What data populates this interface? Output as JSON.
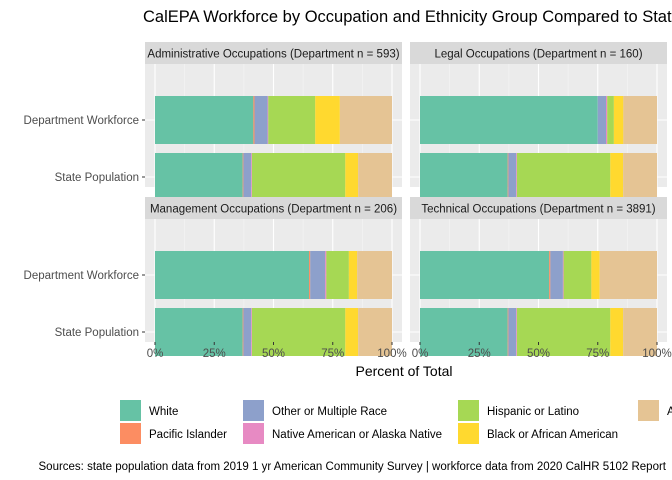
{
  "chart_data": {
    "type": "bar",
    "orientation": "horizontal-stacked-100",
    "title": "CalEPA Workforce by Occupation and Ethnicity Group Compared to State Population",
    "xlabel": "Percent of Total",
    "caption": "Sources: state population data from 2019 1 yr American Community Survey  |  workforce data from 2020 CalHR 5102 Report",
    "x_ticks": [
      "0%",
      "25%",
      "50%",
      "75%",
      "100%"
    ],
    "xlim": [
      0,
      100
    ],
    "categories": [
      "Department Workforce",
      "State Population"
    ],
    "grid": true,
    "legend_position": "bottom",
    "series_order": [
      "White",
      "Pacific Islander",
      "Other or Multiple Race",
      "Native American or Alaska Native",
      "Hispanic or Latino",
      "Black or African American",
      "Asian"
    ],
    "legend": [
      {
        "name": "White",
        "color": "#66C2A5"
      },
      {
        "name": "Pacific Islander",
        "color": "#FC8D62"
      },
      {
        "name": "Other or Multiple Race",
        "color": "#8DA0CB"
      },
      {
        "name": "Native American or Alaska Native",
        "color": "#E78AC3"
      },
      {
        "name": "Hispanic or Latino",
        "color": "#A6D854"
      },
      {
        "name": "Black or African American",
        "color": "#FFD92F"
      },
      {
        "name": "Asian",
        "color": "#E5C494"
      }
    ],
    "panels": [
      {
        "title": "Administrative Occupations (Department n = 593)",
        "bars": [
          {
            "category": "Department Workforce",
            "values": [
              41.5,
              0.5,
              5.5,
              0.3,
              19.8,
              10.4,
              22.0
            ]
          },
          {
            "category": "State Population",
            "values": [
              37.0,
              0.3,
              3.3,
              0.3,
              39.4,
              5.4,
              14.3
            ]
          }
        ]
      },
      {
        "title": "Legal Occupations (Department n = 160)",
        "bars": [
          {
            "category": "Department Workforce",
            "values": [
              75.0,
              0.0,
              3.5,
              0.5,
              2.8,
              4.0,
              14.2
            ]
          },
          {
            "category": "State Population",
            "values": [
              37.0,
              0.3,
              3.3,
              0.3,
              39.4,
              5.4,
              14.3
            ]
          }
        ]
      },
      {
        "title": "Management Occupations (Department n = 206)",
        "bars": [
          {
            "category": "Department Workforce",
            "values": [
              65.0,
              0.5,
              6.3,
              0.5,
              9.5,
              3.5,
              14.7
            ]
          },
          {
            "category": "State Population",
            "values": [
              37.0,
              0.3,
              3.3,
              0.3,
              39.4,
              5.4,
              14.3
            ]
          }
        ]
      },
      {
        "title": "Technical Occupations (Department n = 3891)",
        "bars": [
          {
            "category": "Department Workforce",
            "values": [
              54.5,
              0.5,
              5.3,
              0.3,
              11.7,
              3.5,
              24.2
            ]
          },
          {
            "category": "State Population",
            "values": [
              37.0,
              0.3,
              3.3,
              0.3,
              39.4,
              5.4,
              14.3
            ]
          }
        ]
      }
    ]
  }
}
